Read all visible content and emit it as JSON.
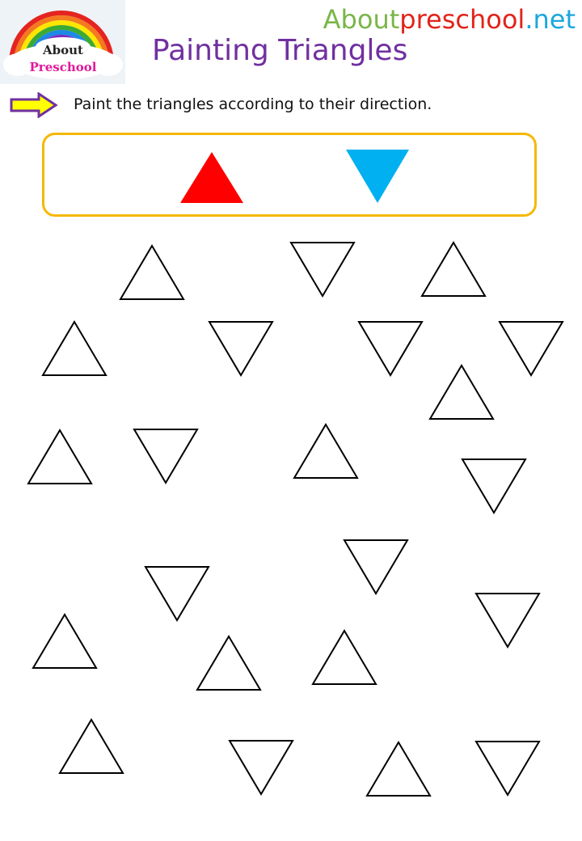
{
  "header": {
    "logo": {
      "line1": "About",
      "line2": "Preschool"
    },
    "site": {
      "part1": "About",
      "part2": "preschool",
      "part3": ".net"
    },
    "title": "Painting Triangles"
  },
  "instruction": "Paint the triangles according to their direction.",
  "key": {
    "up_color": "#ff0000",
    "down_color": "#00b0f0"
  },
  "colors": {
    "title": "#7030a0",
    "key_border": "#f5b800",
    "arrow_fill": "#ffff00",
    "arrow_stroke": "#7030a0"
  },
  "triangles": {
    "up_count": 13,
    "down_count": 12
  }
}
